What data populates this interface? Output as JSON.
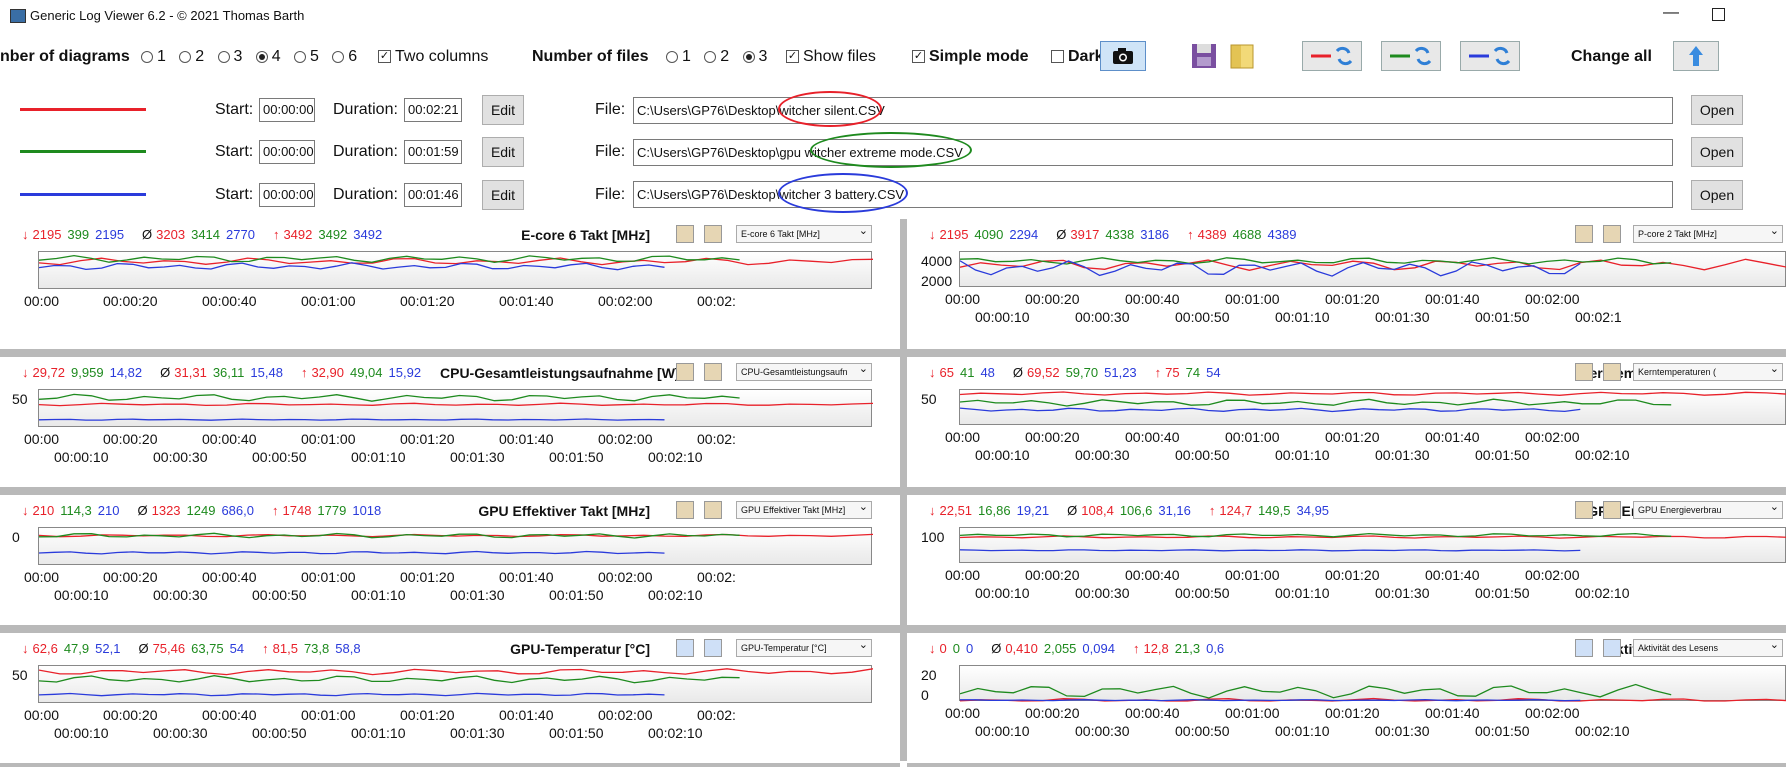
{
  "window": {
    "title": "Generic Log Viewer 6.2 - © 2021 Thomas Barth",
    "minimize": "—"
  },
  "controls": {
    "diagrams_label": "nber of diagrams",
    "diagram_options": [
      "1",
      "2",
      "3",
      "4",
      "5",
      "6"
    ],
    "diagrams_selected": "4",
    "two_columns": "Two columns",
    "files_label": "Number of files",
    "file_options": [
      "1",
      "2",
      "3"
    ],
    "files_selected": "3",
    "show_files": "Show files",
    "simple_mode": "Simple mode",
    "dark": "Dark",
    "change_all": "Change all"
  },
  "colors": {
    "red": "#e8212a",
    "green": "#1e8a1e",
    "blue": "#2a3bdb"
  },
  "files": [
    {
      "color": "red",
      "start": "00:00:00",
      "duration": "00:02:21",
      "edit": "Edit",
      "file_label": "File:",
      "path": "C:\\Users\\GP76\\Desktop\\witcher silent.CSV",
      "open": "Open"
    },
    {
      "color": "green",
      "start": "00:00:00",
      "duration": "00:01:59",
      "edit": "Edit",
      "file_label": "File:",
      "path": "C:\\Users\\GP76\\Desktop\\gpu witcher extreme mode.CSV",
      "open": "Open"
    },
    {
      "color": "blue",
      "start": "00:00:00",
      "duration": "00:01:46",
      "edit": "Edit",
      "file_label": "File:",
      "path": "C:\\Users\\GP76\\Desktop\\witcher 3 battery.CSV",
      "open": "Open"
    }
  ],
  "labels": {
    "start": "Start:",
    "duration": "Duration:"
  },
  "panels": [
    {
      "title": "E-core 6 Takt [MHz]",
      "combo": "E-core 6 Takt [MHz]",
      "min": [
        "2195",
        "399",
        "2195"
      ],
      "avg": [
        "3203",
        "3414",
        "2770"
      ],
      "max": [
        "3492",
        "3492",
        "3492"
      ],
      "yticks": [],
      "xticks_top": [
        "00:00",
        "00:00:20",
        "00:00:40",
        "00:01:00",
        "00:01:20",
        "00:01:40",
        "00:02:00",
        "00:02:"
      ],
      "xticks_bottom": []
    },
    {
      "title": "P-core 2 Takt [MHz]",
      "combo": "P-core 2 Takt [MHz]",
      "min": [
        "2195",
        "4090",
        "2294"
      ],
      "avg": [
        "3917",
        "4338",
        "3186"
      ],
      "max": [
        "4389",
        "4688",
        "4389"
      ],
      "yticks": [
        "4000",
        "2000"
      ],
      "xticks_top": [
        "00:00",
        "00:00:20",
        "00:00:40",
        "00:01:00",
        "00:01:20",
        "00:01:40",
        "00:02:00"
      ],
      "xticks_bottom": [
        "00:00:10",
        "00:00:30",
        "00:00:50",
        "00:01:10",
        "00:01:30",
        "00:01:50",
        "00:02:1"
      ]
    },
    {
      "title": "CPU-Gesamtleistungsaufnahme [W]",
      "combo": "CPU-Gesamtleistungsaufn",
      "min": [
        "29,72",
        "9,959",
        "14,82"
      ],
      "avg": [
        "31,31",
        "36,11",
        "15,48"
      ],
      "max": [
        "32,90",
        "49,04",
        "15,92"
      ],
      "yticks": [
        "50"
      ],
      "xticks_top": [
        "00:00",
        "00:00:20",
        "00:00:40",
        "00:01:00",
        "00:01:20",
        "00:01:40",
        "00:02:00",
        "00:02:"
      ],
      "xticks_bottom": [
        "00:00:10",
        "00:00:30",
        "00:00:50",
        "00:01:10",
        "00:01:30",
        "00:01:50",
        "00:02:10"
      ]
    },
    {
      "title": "Kerntemperaturen (avg) [°C]",
      "combo": "Kerntemperaturen (",
      "min": [
        "65",
        "41",
        "48"
      ],
      "avg": [
        "69,52",
        "59,70",
        "51,23"
      ],
      "max": [
        "75",
        "74",
        "54"
      ],
      "yticks": [
        "50"
      ],
      "xticks_top": [
        "00:00",
        "00:00:20",
        "00:00:40",
        "00:01:00",
        "00:01:20",
        "00:01:40",
        "00:02:00"
      ],
      "xticks_bottom": [
        "00:00:10",
        "00:00:30",
        "00:00:50",
        "00:01:10",
        "00:01:30",
        "00:01:50",
        "00:02:10"
      ]
    },
    {
      "title": "GPU Effektiver Takt [MHz]",
      "combo": "GPU Effektiver Takt [MHz]",
      "min": [
        "210",
        "114,3",
        "210"
      ],
      "avg": [
        "1323",
        "1249",
        "686,0"
      ],
      "max": [
        "1748",
        "1779",
        "1018"
      ],
      "yticks": [
        "0"
      ],
      "xticks_top": [
        "00:00",
        "00:00:20",
        "00:00:40",
        "00:01:00",
        "00:01:20",
        "00:01:40",
        "00:02:00",
        "00:02:"
      ],
      "xticks_bottom": [
        "00:00:10",
        "00:00:30",
        "00:00:50",
        "00:01:10",
        "00:01:30",
        "00:01:50",
        "00:02:10"
      ]
    },
    {
      "title": "GPU Energieverbrauch [W]",
      "combo": "GPU Energieverbrau",
      "min": [
        "22,51",
        "16,86",
        "19,21"
      ],
      "avg": [
        "108,4",
        "106,6",
        "31,16"
      ],
      "max": [
        "124,7",
        "149,5",
        "34,95"
      ],
      "yticks": [
        "100"
      ],
      "xticks_top": [
        "00:00",
        "00:00:20",
        "00:00:40",
        "00:01:00",
        "00:01:20",
        "00:01:40",
        "00:02:00"
      ],
      "xticks_bottom": [
        "00:00:10",
        "00:00:30",
        "00:00:50",
        "00:01:10",
        "00:01:30",
        "00:01:50",
        "00:02:10"
      ]
    },
    {
      "title": "GPU-Temperatur [°C]",
      "combo": "GPU-Temperatur [°C]",
      "min": [
        "62,6",
        "47,9",
        "52,1"
      ],
      "avg": [
        "75,46",
        "63,75",
        "54"
      ],
      "max": [
        "81,5",
        "73,8",
        "58,8"
      ],
      "yticks": [
        "50"
      ],
      "xticks_top": [
        "00:00",
        "00:00:20",
        "00:00:40",
        "00:01:00",
        "00:01:20",
        "00:01:40",
        "00:02:00",
        "00:02:"
      ],
      "xticks_bottom": [
        "00:00:10",
        "00:00:30",
        "00:00:50",
        "00:01:10",
        "00:01:30",
        "00:01:50",
        "00:02:10"
      ]
    },
    {
      "title": "Aktivität des Lesens [%]",
      "combo": "Aktivität des Lesens",
      "min": [
        "0",
        "0",
        "0"
      ],
      "avg": [
        "0,410",
        "2,055",
        "0,094"
      ],
      "max": [
        "12,8",
        "21,3",
        "0,6"
      ],
      "yticks": [
        "20",
        "0"
      ],
      "xticks_top": [
        "00:00",
        "00:00:20",
        "00:00:40",
        "00:01:00",
        "00:01:20",
        "00:01:40",
        "00:02:00"
      ],
      "xticks_bottom": [
        "00:00:10",
        "00:00:30",
        "00:00:50",
        "00:01:10",
        "00:01:30",
        "00:01:50",
        "00:02:10"
      ]
    }
  ],
  "symbols": {
    "min": "↓",
    "avg": "Ø",
    "max": "↑",
    "check": "✓"
  }
}
